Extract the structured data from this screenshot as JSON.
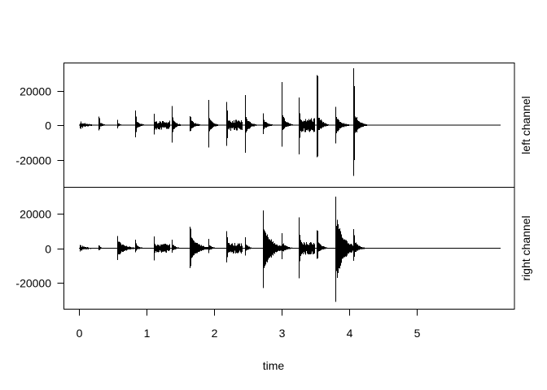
{
  "figure": {
    "background": "#ffffff",
    "axis_color": "#000000",
    "waveform_color": "#000000"
  },
  "chart_data": {
    "type": "line",
    "title": "",
    "xlabel": "time",
    "ylabel": "",
    "legend": "none",
    "grid": false,
    "x_range": [
      -0.25,
      6.49
    ],
    "y_range": [
      -36000,
      36000
    ],
    "x_ticks": [
      0,
      1,
      2,
      3,
      4,
      5
    ],
    "y_ticks": [
      -20000,
      0,
      20000
    ],
    "duration_seconds": 6.24,
    "panel_labels": [
      "left channel",
      "right channel"
    ],
    "series": [
      {
        "name": "left channel",
        "hits": [
          {
            "t": 0.3,
            "pos": 5000,
            "neg": 3000,
            "body": 0.35,
            "decay": 0.05
          },
          {
            "t": 0.57,
            "pos": 3000,
            "neg": 1800,
            "body": 0.4,
            "decay": 0.045
          },
          {
            "t": 0.84,
            "pos": 8500,
            "neg": 7000,
            "body": 0.3,
            "decay": 0.055
          },
          {
            "t": 1.11,
            "pos": 6500,
            "neg": 5500,
            "body": 0.35,
            "decay": 0.05
          },
          {
            "t": 1.38,
            "pos": 11000,
            "neg": 10000,
            "body": 0.3,
            "decay": 0.055
          },
          {
            "t": 1.65,
            "pos": 5200,
            "neg": 3600,
            "body": 0.55,
            "decay": 0.07
          },
          {
            "t": 1.92,
            "pos": 14500,
            "neg": 13000,
            "body": 0.28,
            "decay": 0.06
          },
          {
            "t": 2.19,
            "pos": 13500,
            "neg": 12000,
            "body": 0.3,
            "decay": 0.055
          },
          {
            "t": 2.46,
            "pos": 17500,
            "neg": 16000,
            "body": 0.28,
            "decay": 0.06
          },
          {
            "t": 2.73,
            "pos": 6800,
            "neg": 5200,
            "body": 0.45,
            "decay": 0.06
          },
          {
            "t": 3.0,
            "pos": 25000,
            "neg": 12500,
            "body": 0.25,
            "decay": 0.06
          },
          {
            "t": 3.26,
            "pos": 16000,
            "neg": 17000,
            "body": 0.28,
            "decay": 0.055
          },
          {
            "t": 3.53,
            "pos": 29000,
            "neg": 18500,
            "body": 0.22,
            "decay": 0.06
          },
          {
            "t": 3.8,
            "pos": 10500,
            "neg": 10500,
            "body": 0.5,
            "decay": 0.07
          },
          {
            "t": 4.07,
            "pos": 33000,
            "neg": 29500,
            "body": 0.22,
            "decay": 0.065
          }
        ],
        "noise_bands": [
          {
            "t0": 0.02,
            "t1": 0.3,
            "amp": 2300,
            "tau": 0.1
          },
          {
            "t0": 1.13,
            "t1": 1.34,
            "amp": 2600
          },
          {
            "t0": 2.21,
            "t1": 2.42,
            "amp": 3300
          },
          {
            "t0": 3.28,
            "t1": 3.49,
            "amp": 4100
          }
        ]
      },
      {
        "name": "right channel",
        "hits": [
          {
            "t": 0.3,
            "pos": 1700,
            "neg": 1100,
            "body": 0.45,
            "decay": 0.04
          },
          {
            "t": 0.57,
            "pos": 7000,
            "neg": 6800,
            "body": 0.6,
            "decay": 0.1
          },
          {
            "t": 0.84,
            "pos": 5000,
            "neg": 2400,
            "body": 0.4,
            "decay": 0.05
          },
          {
            "t": 1.11,
            "pos": 6800,
            "neg": 7000,
            "body": 0.4,
            "decay": 0.05
          },
          {
            "t": 1.38,
            "pos": 4900,
            "neg": 2700,
            "body": 0.45,
            "decay": 0.05
          },
          {
            "t": 1.65,
            "pos": 12500,
            "neg": 11500,
            "body": 0.6,
            "decay": 0.1
          },
          {
            "t": 1.92,
            "pos": 5300,
            "neg": 2900,
            "body": 0.4,
            "decay": 0.05
          },
          {
            "t": 2.19,
            "pos": 10000,
            "neg": 8200,
            "body": 0.35,
            "decay": 0.055
          },
          {
            "t": 2.46,
            "pos": 6400,
            "neg": 4300,
            "body": 0.4,
            "decay": 0.05
          },
          {
            "t": 2.73,
            "pos": 21800,
            "neg": 23000,
            "body": 0.55,
            "decay": 0.11
          },
          {
            "t": 3.0,
            "pos": 8700,
            "neg": 6300,
            "body": 0.4,
            "decay": 0.06
          },
          {
            "t": 3.26,
            "pos": 18000,
            "neg": 17500,
            "body": 0.3,
            "decay": 0.055
          },
          {
            "t": 3.53,
            "pos": 10300,
            "neg": 6000,
            "body": 0.4,
            "decay": 0.06
          },
          {
            "t": 3.8,
            "pos": 30000,
            "neg": 31000,
            "body": 0.55,
            "decay": 0.11
          },
          {
            "t": 4.07,
            "pos": 11000,
            "neg": 7200,
            "body": 0.4,
            "decay": 0.06
          }
        ],
        "noise_bands": [
          {
            "t0": 0.02,
            "t1": 0.3,
            "amp": 2000,
            "tau": 0.1
          },
          {
            "t0": 1.13,
            "t1": 1.34,
            "amp": 2700
          },
          {
            "t0": 2.21,
            "t1": 2.42,
            "amp": 3100
          },
          {
            "t0": 3.28,
            "t1": 3.49,
            "amp": 3700
          }
        ]
      }
    ]
  }
}
